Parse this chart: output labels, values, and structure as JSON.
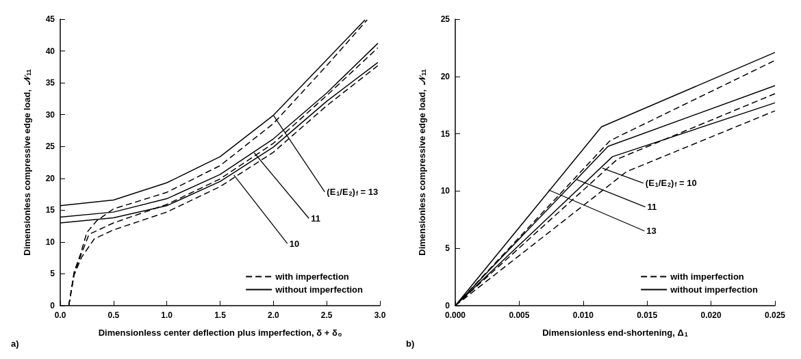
{
  "chart_data": [
    {
      "type": "line",
      "xlabel": "Dimensionless center deflection plus imperfection, δ + δ$_{o}$",
      "ylabel": "Dimensionless compressive edge load,  𝒩$_{11}$",
      "xlim": [
        0,
        3
      ],
      "ylim": [
        0,
        45
      ],
      "xticks": [
        {
          "value": 0,
          "label": "0.0"
        },
        {
          "value": 0.5,
          "label": "0.5"
        },
        {
          "value": 1,
          "label": "1.0"
        },
        {
          "value": 1.5,
          "label": "1.5"
        },
        {
          "value": 2,
          "label": "2.0"
        },
        {
          "value": 2.5,
          "label": "2.5"
        },
        {
          "value": 3,
          "label": "3.0"
        }
      ],
      "yticks": [
        0,
        5,
        10,
        15,
        20,
        25,
        30,
        35,
        40,
        45
      ],
      "grid": false,
      "legend": "bottom right",
      "marker": "none",
      "series": [
        {
          "name": "with imperfection",
          "color": "#000000",
          "line_style": "dashed",
          "x": [
            0.08,
            0.13,
            0.19,
            0.25,
            0.34,
            0.5,
            0.75,
            1.0,
            1.5,
            2.0,
            2.5,
            2.88
          ],
          "values": [
            0,
            5.3,
            8.1,
            11.5,
            13.3,
            15.2,
            16.5,
            17.8,
            22,
            28.6,
            37.7,
            44.9
          ]
        },
        {
          "color": "#000000",
          "line_style": "dashed",
          "x": [
            0.08,
            0.13,
            0.19,
            0.27,
            0.5,
            1.0,
            1.5,
            2.0,
            2.5,
            2.98
          ],
          "values": [
            0,
            5,
            7.8,
            11.2,
            13,
            15.9,
            19.9,
            25.5,
            33,
            40.5
          ]
        },
        {
          "color": "#000000",
          "line_style": "dashed",
          "x": [
            0.08,
            0.13,
            0.2,
            0.32,
            0.5,
            1.0,
            1.5,
            2.0,
            2.5,
            2.98
          ],
          "values": [
            0,
            4.8,
            7.6,
            10.5,
            11.9,
            14.7,
            18.7,
            24.1,
            31.4,
            37.7
          ]
        },
        {
          "name": "without imperfection",
          "color": "#000000",
          "line_style": "solid",
          "x": [
            0,
            0.5,
            1.0,
            1.5,
            2.0,
            2.5,
            2.86
          ],
          "values": [
            15.7,
            16.6,
            19.3,
            23.4,
            29.9,
            38.6,
            44.9
          ]
        },
        {
          "color": "#000000",
          "line_style": "solid",
          "x": [
            0,
            0.5,
            1.0,
            1.5,
            2.0,
            2.5,
            2.98
          ],
          "values": [
            13.9,
            14.7,
            16.8,
            20.6,
            26.2,
            33.4,
            41.2
          ]
        },
        {
          "color": "#000000",
          "line_style": "solid",
          "x": [
            0,
            0.5,
            1.0,
            1.5,
            2.0,
            2.5,
            2.98
          ],
          "values": [
            13.0,
            13.8,
            15.7,
            19.5,
            24.9,
            32.1,
            38.2
          ]
        }
      ],
      "annotations": [
        {
          "text": "(E$_{1}$/E$_{2}$)$_{f}$ = 13",
          "x": 2.0,
          "y": 29.9
        },
        {
          "text": "11",
          "x": 1.82,
          "y": 24
        },
        {
          "text": "10",
          "x": 1.63,
          "y": 20.5
        },
        "a)"
      ]
    },
    {
      "type": "line",
      "xlabel": "Dimensionless end-shortening, Δ$_{1}$",
      "ylabel": "Dimensionless compressive edge load,  𝒩$_{11}$",
      "xlim": [
        0,
        0.025
      ],
      "ylim": [
        0,
        25
      ],
      "xticks": [
        {
          "value": 0,
          "label": "0.000"
        },
        {
          "value": 0.005,
          "label": "0.005"
        },
        {
          "value": 0.01,
          "label": "0.010"
        },
        {
          "value": 0.015,
          "label": "0.015"
        },
        {
          "value": 0.02,
          "label": "0.020"
        },
        {
          "value": 0.025,
          "label": "0.025"
        }
      ],
      "yticks": [
        0,
        5,
        10,
        15,
        20,
        25
      ],
      "grid": false,
      "legend": "bottom right",
      "marker": "none",
      "series": [
        {
          "name": "with imperfection",
          "color": "#000000",
          "line_style": "dashed",
          "x": [
            0,
            0.0121,
            0.025
          ],
          "values": [
            0,
            14.4,
            21.4
          ]
        },
        {
          "color": "#000000",
          "line_style": "dashed",
          "x": [
            0,
            0.0127,
            0.025
          ],
          "values": [
            0,
            12.8,
            18.5
          ]
        },
        {
          "color": "#000000",
          "line_style": "dashed",
          "x": [
            0,
            0.0134,
            0.025
          ],
          "values": [
            0,
            11.7,
            17.0
          ]
        },
        {
          "name": "without imperfection",
          "color": "#000000",
          "line_style": "solid",
          "x": [
            0,
            0.01143,
            0.025
          ],
          "values": [
            0,
            15.6,
            22.1
          ]
        },
        {
          "color": "#000000",
          "line_style": "solid",
          "x": [
            0,
            0.01195,
            0.025
          ],
          "values": [
            0,
            13.9,
            19.2
          ]
        },
        {
          "color": "#000000",
          "line_style": "solid",
          "x": [
            0,
            0.01229,
            0.025
          ],
          "values": [
            0,
            13.0,
            17.7
          ]
        }
      ],
      "annotations": [
        {
          "text": "(E$_{1}$/E$_{2}$)$_{f}$ = 10",
          "x": 0.0115,
          "y": 12
        },
        {
          "text": "11",
          "x": 0.0095,
          "y": 11
        },
        {
          "text": "13",
          "x": 0.0073,
          "y": 10.1
        },
        "b)"
      ]
    }
  ]
}
